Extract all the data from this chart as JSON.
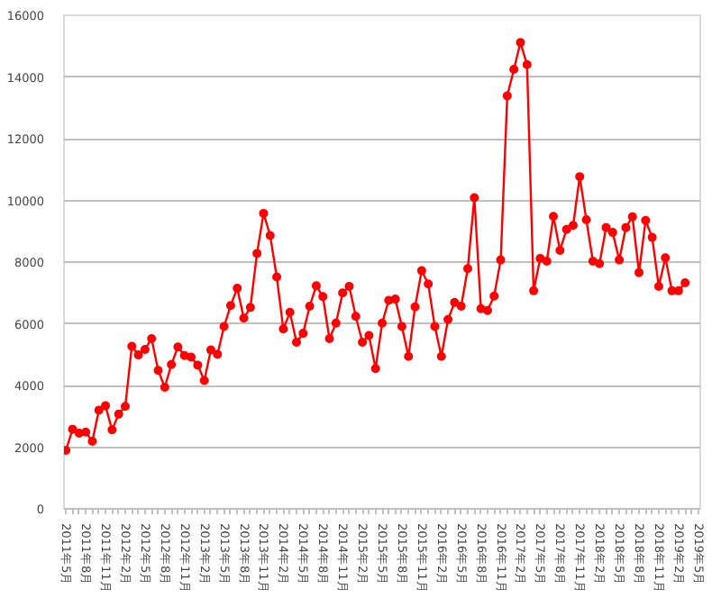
{
  "chart_data": {
    "type": "line",
    "categories": [
      "2011年5月",
      null,
      null,
      "2011年8月",
      null,
      null,
      "2011年11月",
      null,
      null,
      "2012年2月",
      null,
      null,
      "2012年5月",
      null,
      null,
      "2012年8月",
      null,
      null,
      "2012年11月",
      null,
      null,
      "2013年2月",
      null,
      null,
      "2013年5月",
      null,
      null,
      "2013年8月",
      null,
      null,
      "2013年11月",
      null,
      null,
      "2014年2月",
      null,
      null,
      "2014年5月",
      null,
      null,
      "2014年8月",
      null,
      null,
      "2014年11月",
      null,
      null,
      "2015年2月",
      null,
      null,
      "2015年5月",
      null,
      null,
      "2015年8月",
      null,
      null,
      "2015年11月",
      null,
      null,
      "2016年2月",
      null,
      null,
      "2016年5月",
      null,
      null,
      "2016年8月",
      null,
      null,
      "2016年11月",
      null,
      null,
      "2017年2月",
      null,
      null,
      "2017年5月",
      null,
      null,
      "2017年8月",
      null,
      null,
      "2017年11月",
      null,
      null,
      "2018年2月",
      null,
      null,
      "2018年5月",
      null,
      null,
      "2018年8月",
      null,
      null,
      "2018年11月",
      null,
      null,
      "2019年2月",
      null,
      null,
      "2019年5月"
    ],
    "series": [
      {
        "color": "#ff0000",
        "values": [
          1900,
          2580,
          2450,
          2490,
          2190,
          3200,
          3340,
          2560,
          3070,
          3320,
          5270,
          4990,
          5170,
          5520,
          4490,
          3940,
          4680,
          5250,
          4970,
          4920,
          4660,
          4160,
          5150,
          5010,
          5910,
          6590,
          7150,
          6180,
          6530,
          8280,
          9580,
          8860,
          7520,
          5830,
          6370,
          5400,
          5690,
          6570,
          7230,
          6880,
          5520,
          6020,
          7000,
          7210,
          6240,
          5400,
          5620,
          4550,
          6020,
          6760,
          6800,
          5910,
          4940,
          6550,
          7720,
          7290,
          5910,
          4940,
          6140,
          6690,
          6570,
          7790,
          10090,
          6490,
          6430,
          6900,
          8070,
          13390,
          14250,
          15120,
          14400,
          7070,
          8120,
          8030,
          9480,
          8380,
          9060,
          9190,
          10770,
          9370,
          8030,
          7950,
          9120,
          8960,
          8070,
          9120,
          9470,
          7660,
          9350,
          8800,
          7210,
          8140,
          7070,
          7070,
          7330,
          null,
          null
        ]
      }
    ],
    "ylim": [
      0,
      16000
    ],
    "yticks": [
      0,
      2000,
      4000,
      6000,
      8000,
      10000,
      12000,
      14000,
      16000
    ],
    "grid": "y",
    "marker": "circle",
    "line_style": "solid"
  }
}
